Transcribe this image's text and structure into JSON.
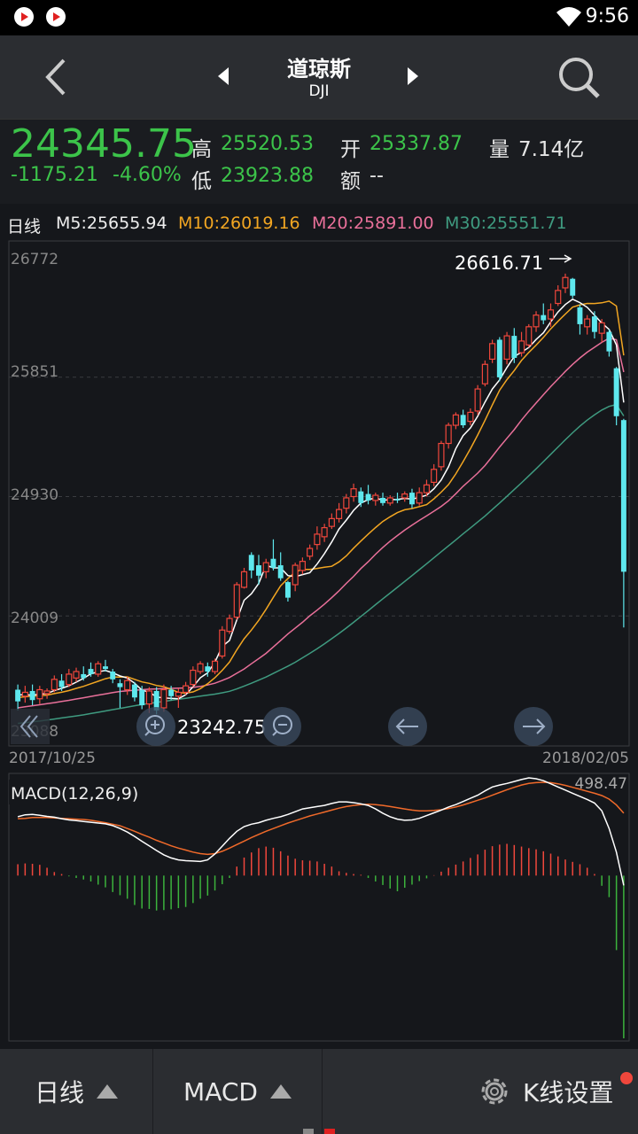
{
  "status": {
    "time": "9:56"
  },
  "header": {
    "title": "道琼斯",
    "code": "DJI"
  },
  "quote": {
    "last": "24345.75",
    "change": "-1175.21",
    "change_pct": "-4.60%",
    "high_label": "高",
    "high": "25520.53",
    "low_label": "低",
    "low": "23923.88",
    "open_label": "开",
    "open": "25337.87",
    "amount_label": "额",
    "amount": "--",
    "volume_label": "量",
    "volume": "7.14亿"
  },
  "ma_legend": {
    "period": "日线",
    "m5": "M5:25655.94",
    "m10": "M10:26019.16",
    "m20": "M20:25891.00",
    "m30": "M30:25551.71"
  },
  "colors": {
    "up": "#f0473c",
    "down": "#5ee8ee",
    "m5": "#ffffff",
    "m10": "#f2a622",
    "m20": "#e9709a",
    "m30": "#3f9b80",
    "dif": "#ffffff",
    "dea": "#f06a2a",
    "macd_up": "#f0473c",
    "macd_down": "#3cb33c",
    "price_green": "#3cc44a"
  },
  "chart_data": [
    {
      "type": "candlestick",
      "y_ticks": [
        "26772",
        "25851",
        "24930",
        "24009",
        "23088"
      ],
      "ylim": [
        23088,
        26772
      ],
      "x_start": "2017/10/25",
      "x_end": "2018/02/05",
      "max_label": "26616.71",
      "min_label": "23242.75",
      "candles": [
        [
          23440,
          23350,
          23480,
          23280
        ],
        [
          23390,
          23420,
          23470,
          23340
        ],
        [
          23430,
          23360,
          23480,
          23320
        ],
        [
          23370,
          23440,
          23470,
          23330
        ],
        [
          23410,
          23430,
          23450,
          23370
        ],
        [
          23440,
          23520,
          23550,
          23420
        ],
        [
          23510,
          23460,
          23560,
          23430
        ],
        [
          23480,
          23560,
          23600,
          23460
        ],
        [
          23530,
          23580,
          23610,
          23500
        ],
        [
          23560,
          23530,
          23620,
          23510
        ],
        [
          23600,
          23560,
          23650,
          23540
        ],
        [
          23560,
          23640,
          23660,
          23540
        ],
        [
          23620,
          23600,
          23670,
          23580
        ],
        [
          23580,
          23520,
          23600,
          23490
        ],
        [
          23490,
          23460,
          23520,
          23300
        ],
        [
          23440,
          23510,
          23540,
          23400
        ],
        [
          23480,
          23380,
          23500,
          23350
        ],
        [
          23440,
          23320,
          23470,
          23290
        ],
        [
          23330,
          23430,
          23460,
          23260
        ],
        [
          23430,
          23280,
          23460,
          23250
        ],
        [
          23300,
          23440,
          23480,
          23270
        ],
        [
          23440,
          23390,
          23470,
          23360
        ],
        [
          23390,
          23420,
          23450,
          23300
        ],
        [
          23420,
          23470,
          23500,
          23400
        ],
        [
          23480,
          23590,
          23620,
          23460
        ],
        [
          23580,
          23640,
          23660,
          23560
        ],
        [
          23620,
          23580,
          23650,
          23540
        ],
        [
          23580,
          23660,
          23680,
          23560
        ],
        [
          23700,
          23900,
          23930,
          23680
        ],
        [
          23890,
          23990,
          24020,
          23870
        ],
        [
          24000,
          24250,
          24270,
          23980
        ],
        [
          24230,
          24350,
          24380,
          24220
        ],
        [
          24480,
          24360,
          24500,
          24300
        ],
        [
          24400,
          24320,
          24480,
          24250
        ],
        [
          24350,
          24420,
          24450,
          24300
        ],
        [
          24450,
          24380,
          24600,
          24360
        ],
        [
          24400,
          24300,
          24500,
          24280
        ],
        [
          24270,
          24150,
          24280,
          24120
        ],
        [
          24250,
          24400,
          24420,
          24200
        ],
        [
          24360,
          24430,
          24460,
          24330
        ],
        [
          24470,
          24530,
          24560,
          24440
        ],
        [
          24560,
          24640,
          24700,
          24520
        ],
        [
          24620,
          24690,
          24720,
          24580
        ],
        [
          24700,
          24760,
          24800,
          24680
        ],
        [
          24760,
          24830,
          24880,
          24730
        ],
        [
          24840,
          24920,
          24950,
          24800
        ],
        [
          24930,
          24990,
          25030,
          24890
        ],
        [
          24970,
          24880,
          25000,
          24850
        ],
        [
          24950,
          24900,
          25020,
          24870
        ],
        [
          24900,
          24940,
          24960,
          24860
        ],
        [
          24920,
          24880,
          24960,
          24860
        ],
        [
          24880,
          24920,
          24940,
          24860
        ],
        [
          24910,
          24900,
          24960,
          24880
        ],
        [
          24920,
          24950,
          24970,
          24890
        ],
        [
          24960,
          24870,
          24990,
          24840
        ],
        [
          24880,
          24960,
          25000,
          24860
        ],
        [
          24960,
          25020,
          25060,
          24930
        ],
        [
          25040,
          25140,
          25180,
          25010
        ],
        [
          25160,
          25340,
          25360,
          25130
        ],
        [
          25340,
          25480,
          25500,
          25300
        ],
        [
          25480,
          25560,
          25580,
          25450
        ],
        [
          25560,
          25480,
          25600,
          25460
        ],
        [
          25510,
          25580,
          25610,
          25480
        ],
        [
          25590,
          25760,
          25790,
          25560
        ],
        [
          25800,
          25950,
          25980,
          25780
        ],
        [
          25990,
          26110,
          26140,
          25960
        ],
        [
          26140,
          25850,
          26160,
          25820
        ],
        [
          25990,
          26170,
          26200,
          25950
        ],
        [
          26170,
          26000,
          26230,
          25960
        ],
        [
          26040,
          26130,
          26200,
          26010
        ],
        [
          26100,
          26240,
          26260,
          26080
        ],
        [
          26240,
          26330,
          26360,
          26200
        ],
        [
          26330,
          26290,
          26420,
          26260
        ],
        [
          26300,
          26370,
          26420,
          26240
        ],
        [
          26420,
          26520,
          26560,
          26400
        ],
        [
          26540,
          26620,
          26650,
          26500
        ],
        [
          26610,
          26480,
          26617,
          26460
        ],
        [
          26390,
          26260,
          26410,
          26180
        ],
        [
          26240,
          26300,
          26330,
          26180
        ],
        [
          26320,
          26200,
          26360,
          26150
        ],
        [
          26190,
          26270,
          26300,
          26120
        ],
        [
          26200,
          26050,
          26220,
          26010
        ],
        [
          25920,
          25550,
          25930,
          25480
        ],
        [
          25520,
          24350,
          25530,
          23920
        ]
      ],
      "ma5": [
        23400,
        23402,
        23398,
        23406,
        23410,
        23434,
        23450,
        23470,
        23498,
        23528,
        23562,
        23578,
        23588,
        23570,
        23546,
        23530,
        23490,
        23436,
        23422,
        23384,
        23376,
        23374,
        23370,
        23402,
        23462,
        23532,
        23570,
        23652,
        23774,
        23820,
        23980,
        24130,
        24180,
        24260,
        24400,
        24380,
        24380,
        24320,
        24312,
        24328,
        24342,
        24410,
        24490,
        24580,
        24680,
        24748,
        24824,
        24880,
        24906,
        24920,
        24902,
        24906,
        24908,
        24916,
        24910,
        24924,
        24940,
        24990,
        25058,
        25160,
        25300,
        25400,
        25460,
        25550,
        25660,
        25760,
        25830,
        25926,
        26010,
        26044,
        26080,
        26142,
        26194,
        26278,
        26354,
        26412,
        26452,
        26426,
        26390,
        26330,
        26268,
        26220,
        26100,
        25655.94
      ],
      "ma10": [
        23380,
        23385,
        23390,
        23394,
        23398,
        23410,
        23420,
        23433,
        23450,
        23466,
        23486,
        23505,
        23525,
        23538,
        23537,
        23539,
        23520,
        23500,
        23489,
        23473,
        23463,
        23443,
        23419,
        23413,
        23423,
        23448,
        23486,
        23532,
        23590,
        23653,
        23748,
        23833,
        23900,
        23975,
        24060,
        24153,
        24242,
        24297,
        24349,
        24368,
        24368,
        24376,
        24385,
        24392,
        24426,
        24472,
        24532,
        24587,
        24640,
        24691,
        24738,
        24774,
        24806,
        24828,
        24838,
        24852,
        24868,
        24912,
        24964,
        25023,
        25105,
        25199,
        25299,
        25405,
        25519,
        25637,
        25750,
        25832,
        25902,
        25980,
        26042,
        26098,
        26158,
        26224,
        26282,
        26338,
        26391,
        26409,
        26420,
        26419,
        26425,
        26438,
        26400,
        26019.16
      ],
      "ma20": [
        23300,
        23308,
        23316,
        23324,
        23332,
        23340,
        23350,
        23358,
        23368,
        23378,
        23388,
        23398,
        23408,
        23418,
        23426,
        23432,
        23436,
        23440,
        23444,
        23446,
        23448,
        23450,
        23452,
        23454,
        23458,
        23465,
        23476,
        23490,
        23511,
        23534,
        23567,
        23600,
        23640,
        23680,
        23720,
        23770,
        23820,
        23870,
        23916,
        23960,
        24010,
        24054,
        24100,
        24150,
        24203,
        24260,
        24315,
        24375,
        24427,
        24485,
        24538,
        24586,
        24629,
        24671,
        24710,
        24746,
        24781,
        24817,
        24854,
        24898,
        24952,
        25009,
        25060,
        25111,
        25170,
        25240,
        25312,
        25380,
        25446,
        25520,
        25588,
        25652,
        25716,
        25778,
        25836,
        25896,
        25950,
        26000,
        26044,
        26082,
        26120,
        26152,
        26140,
        25891.0
      ],
      "ma30": [
        23180,
        23186,
        23192,
        23198,
        23206,
        23214,
        23222,
        23230,
        23238,
        23246,
        23256,
        23266,
        23276,
        23286,
        23296,
        23306,
        23316,
        23326,
        23334,
        23342,
        23350,
        23358,
        23366,
        23374,
        23382,
        23390,
        23398,
        23406,
        23416,
        23428,
        23446,
        23468,
        23490,
        23514,
        23538,
        23566,
        23594,
        23622,
        23652,
        23686,
        23720,
        23756,
        23794,
        23834,
        23874,
        23916,
        23960,
        24005,
        24050,
        24096,
        24141,
        24186,
        24230,
        24275,
        24320,
        24366,
        24412,
        24458,
        24504,
        24550,
        24596,
        24642,
        24688,
        24734,
        24780,
        24830,
        24880,
        24932,
        24984,
        25036,
        25090,
        25144,
        25200,
        25256,
        25312,
        25368,
        25422,
        25474,
        25520,
        25560,
        25598,
        25626,
        25640,
        25551.71
      ]
    },
    {
      "type": "macd",
      "title": "MACD(12,26,9)",
      "value_label": "498.47",
      "ylim": [
        -830,
        498.47
      ],
      "hist": [
        58,
        62,
        60,
        55,
        40,
        18,
        8,
        -4,
        -12,
        -20,
        -30,
        -46,
        -60,
        -84,
        -100,
        -118,
        -150,
        -168,
        -170,
        -178,
        -176,
        -172,
        -166,
        -160,
        -140,
        -118,
        -102,
        -76,
        -44,
        -12,
        46,
        92,
        118,
        140,
        148,
        142,
        124,
        102,
        86,
        78,
        76,
        72,
        60,
        46,
        22,
        14,
        8,
        4,
        -12,
        -30,
        -48,
        -66,
        -80,
        -62,
        -46,
        -28,
        -14,
        2,
        20,
        40,
        56,
        72,
        90,
        108,
        132,
        150,
        158,
        162,
        156,
        148,
        140,
        134,
        124,
        112,
        98,
        82,
        70,
        58,
        40,
        8,
        -52,
        -110,
        -380,
        -830
      ],
      "dif": [
        300,
        310,
        312,
        308,
        302,
        298,
        290,
        284,
        280,
        276,
        272,
        268,
        264,
        255,
        240,
        222,
        200,
        175,
        152,
        128,
        106,
        90,
        80,
        76,
        74,
        72,
        80,
        110,
        150,
        190,
        226,
        250,
        262,
        270,
        282,
        292,
        300,
        312,
        326,
        340,
        346,
        352,
        358,
        368,
        376,
        376,
        372,
        366,
        358,
        340,
        318,
        300,
        288,
        282,
        284,
        292,
        306,
        320,
        334,
        350,
        362,
        378,
        394,
        410,
        432,
        452,
        462,
        470,
        480,
        490,
        498.47,
        494,
        484,
        468,
        452,
        436,
        420,
        404,
        388,
        370,
        330,
        240,
        120,
        -50
      ],
      "dea": [
        290,
        292,
        296,
        296,
        296,
        294,
        292,
        290,
        288,
        286,
        282,
        276,
        270,
        262,
        254,
        240,
        226,
        210,
        196,
        180,
        166,
        152,
        140,
        130,
        120,
        112,
        108,
        112,
        124,
        140,
        158,
        176,
        194,
        210,
        226,
        240,
        254,
        268,
        280,
        292,
        304,
        314,
        324,
        334,
        344,
        352,
        358,
        362,
        364,
        362,
        358,
        352,
        346,
        340,
        334,
        330,
        330,
        332,
        336,
        342,
        350,
        360,
        372,
        384,
        396,
        410,
        424,
        438,
        450,
        462,
        470,
        474,
        476,
        474,
        468,
        460,
        450,
        440,
        430,
        420,
        408,
        390,
        360,
        318
      ]
    }
  ],
  "controls": {
    "zoom_in": "zoom-in",
    "zoom_out": "zoom-out",
    "prev": "arrow-left",
    "next": "arrow-right",
    "scroll_left": "double-chevron-left"
  },
  "bottom": {
    "period_label": "日线",
    "indicator_label": "MACD",
    "settings_label": "K线设置"
  }
}
